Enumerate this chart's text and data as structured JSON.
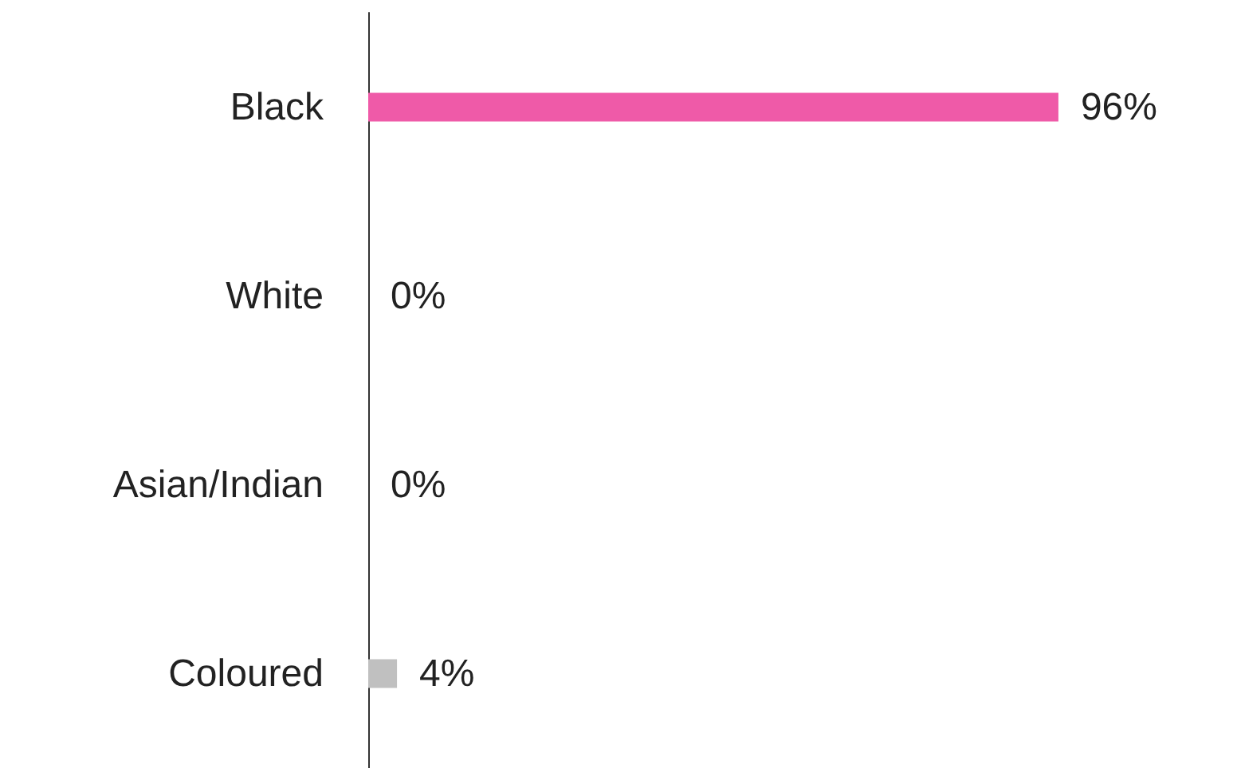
{
  "chart_data": {
    "type": "bar",
    "orientation": "horizontal",
    "categories": [
      "Black",
      "White",
      "Asian/Indian",
      "Coloured"
    ],
    "values": [
      96,
      0,
      0,
      4
    ],
    "colors": [
      "#ef5aa8",
      "#c0c0c0",
      "#c0c0c0",
      "#c0c0c0"
    ],
    "value_labels": [
      "96%",
      "0%",
      "0%",
      "4%"
    ]
  }
}
